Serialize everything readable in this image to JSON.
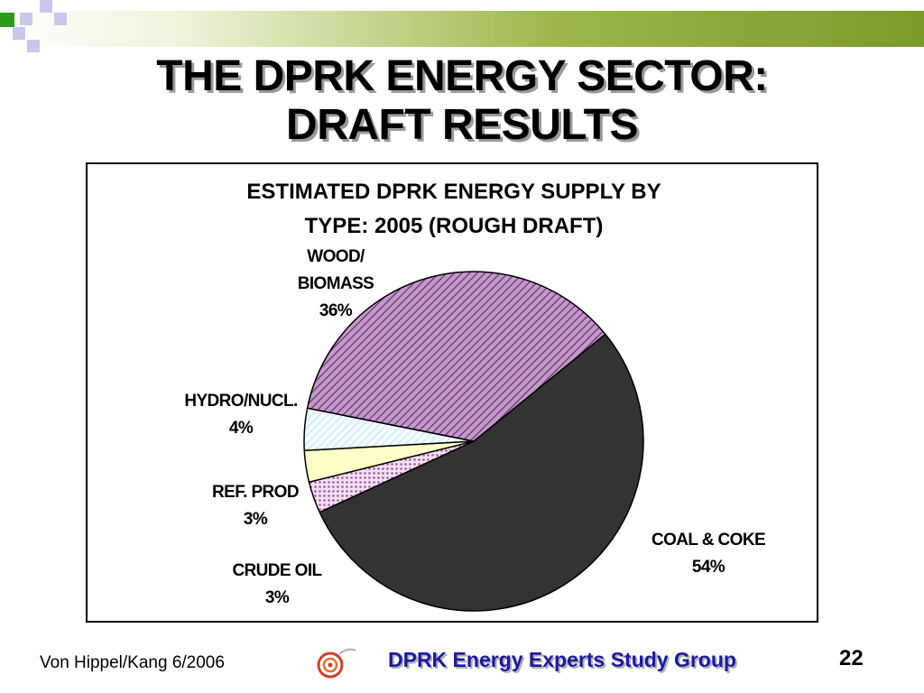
{
  "slide": {
    "title_line1": "THE DPRK ENERGY SECTOR:",
    "title_line2": "DRAFT RESULTS"
  },
  "chart_data": {
    "type": "pie",
    "title_line1": "ESTIMATED DPRK ENERGY SUPPLY BY",
    "title_line2": "TYPE: 2005  (ROUGH DRAFT)",
    "slices": [
      {
        "name": "COAL & COKE",
        "value": 54,
        "label_line1": "COAL & COKE",
        "label_line2": "54%",
        "color": "#333333",
        "pattern": "solid"
      },
      {
        "name": "CRUDE OIL",
        "value": 3,
        "label_line1": "CRUDE OIL",
        "label_line2": "3%",
        "color": "#cc88cc",
        "pattern": "dots"
      },
      {
        "name": "REF. PROD",
        "value": 3,
        "label_line1": "REF. PROD",
        "label_line2": "3%",
        "color": "#ffffc8",
        "pattern": "solid"
      },
      {
        "name": "HYDRO/NUCL.",
        "value": 4,
        "label_line1": "HYDRO/NUCL.",
        "label_line2": "4%",
        "color": "#d8f4fc",
        "pattern": "hatch-light"
      },
      {
        "name": "WOOD/ BIOMASS",
        "value": 36,
        "label_line1": "WOOD/",
        "label_line2": "BIOMASS",
        "label_line3": "36%",
        "color": "#a060a8",
        "pattern": "hatch"
      }
    ]
  },
  "footer": {
    "authors": "Von Hippel/Kang  6/2006",
    "group": "DPRK Energy Experts Study Group",
    "page_number": "22"
  },
  "logo": {
    "icon": "swirl-logo-icon"
  }
}
